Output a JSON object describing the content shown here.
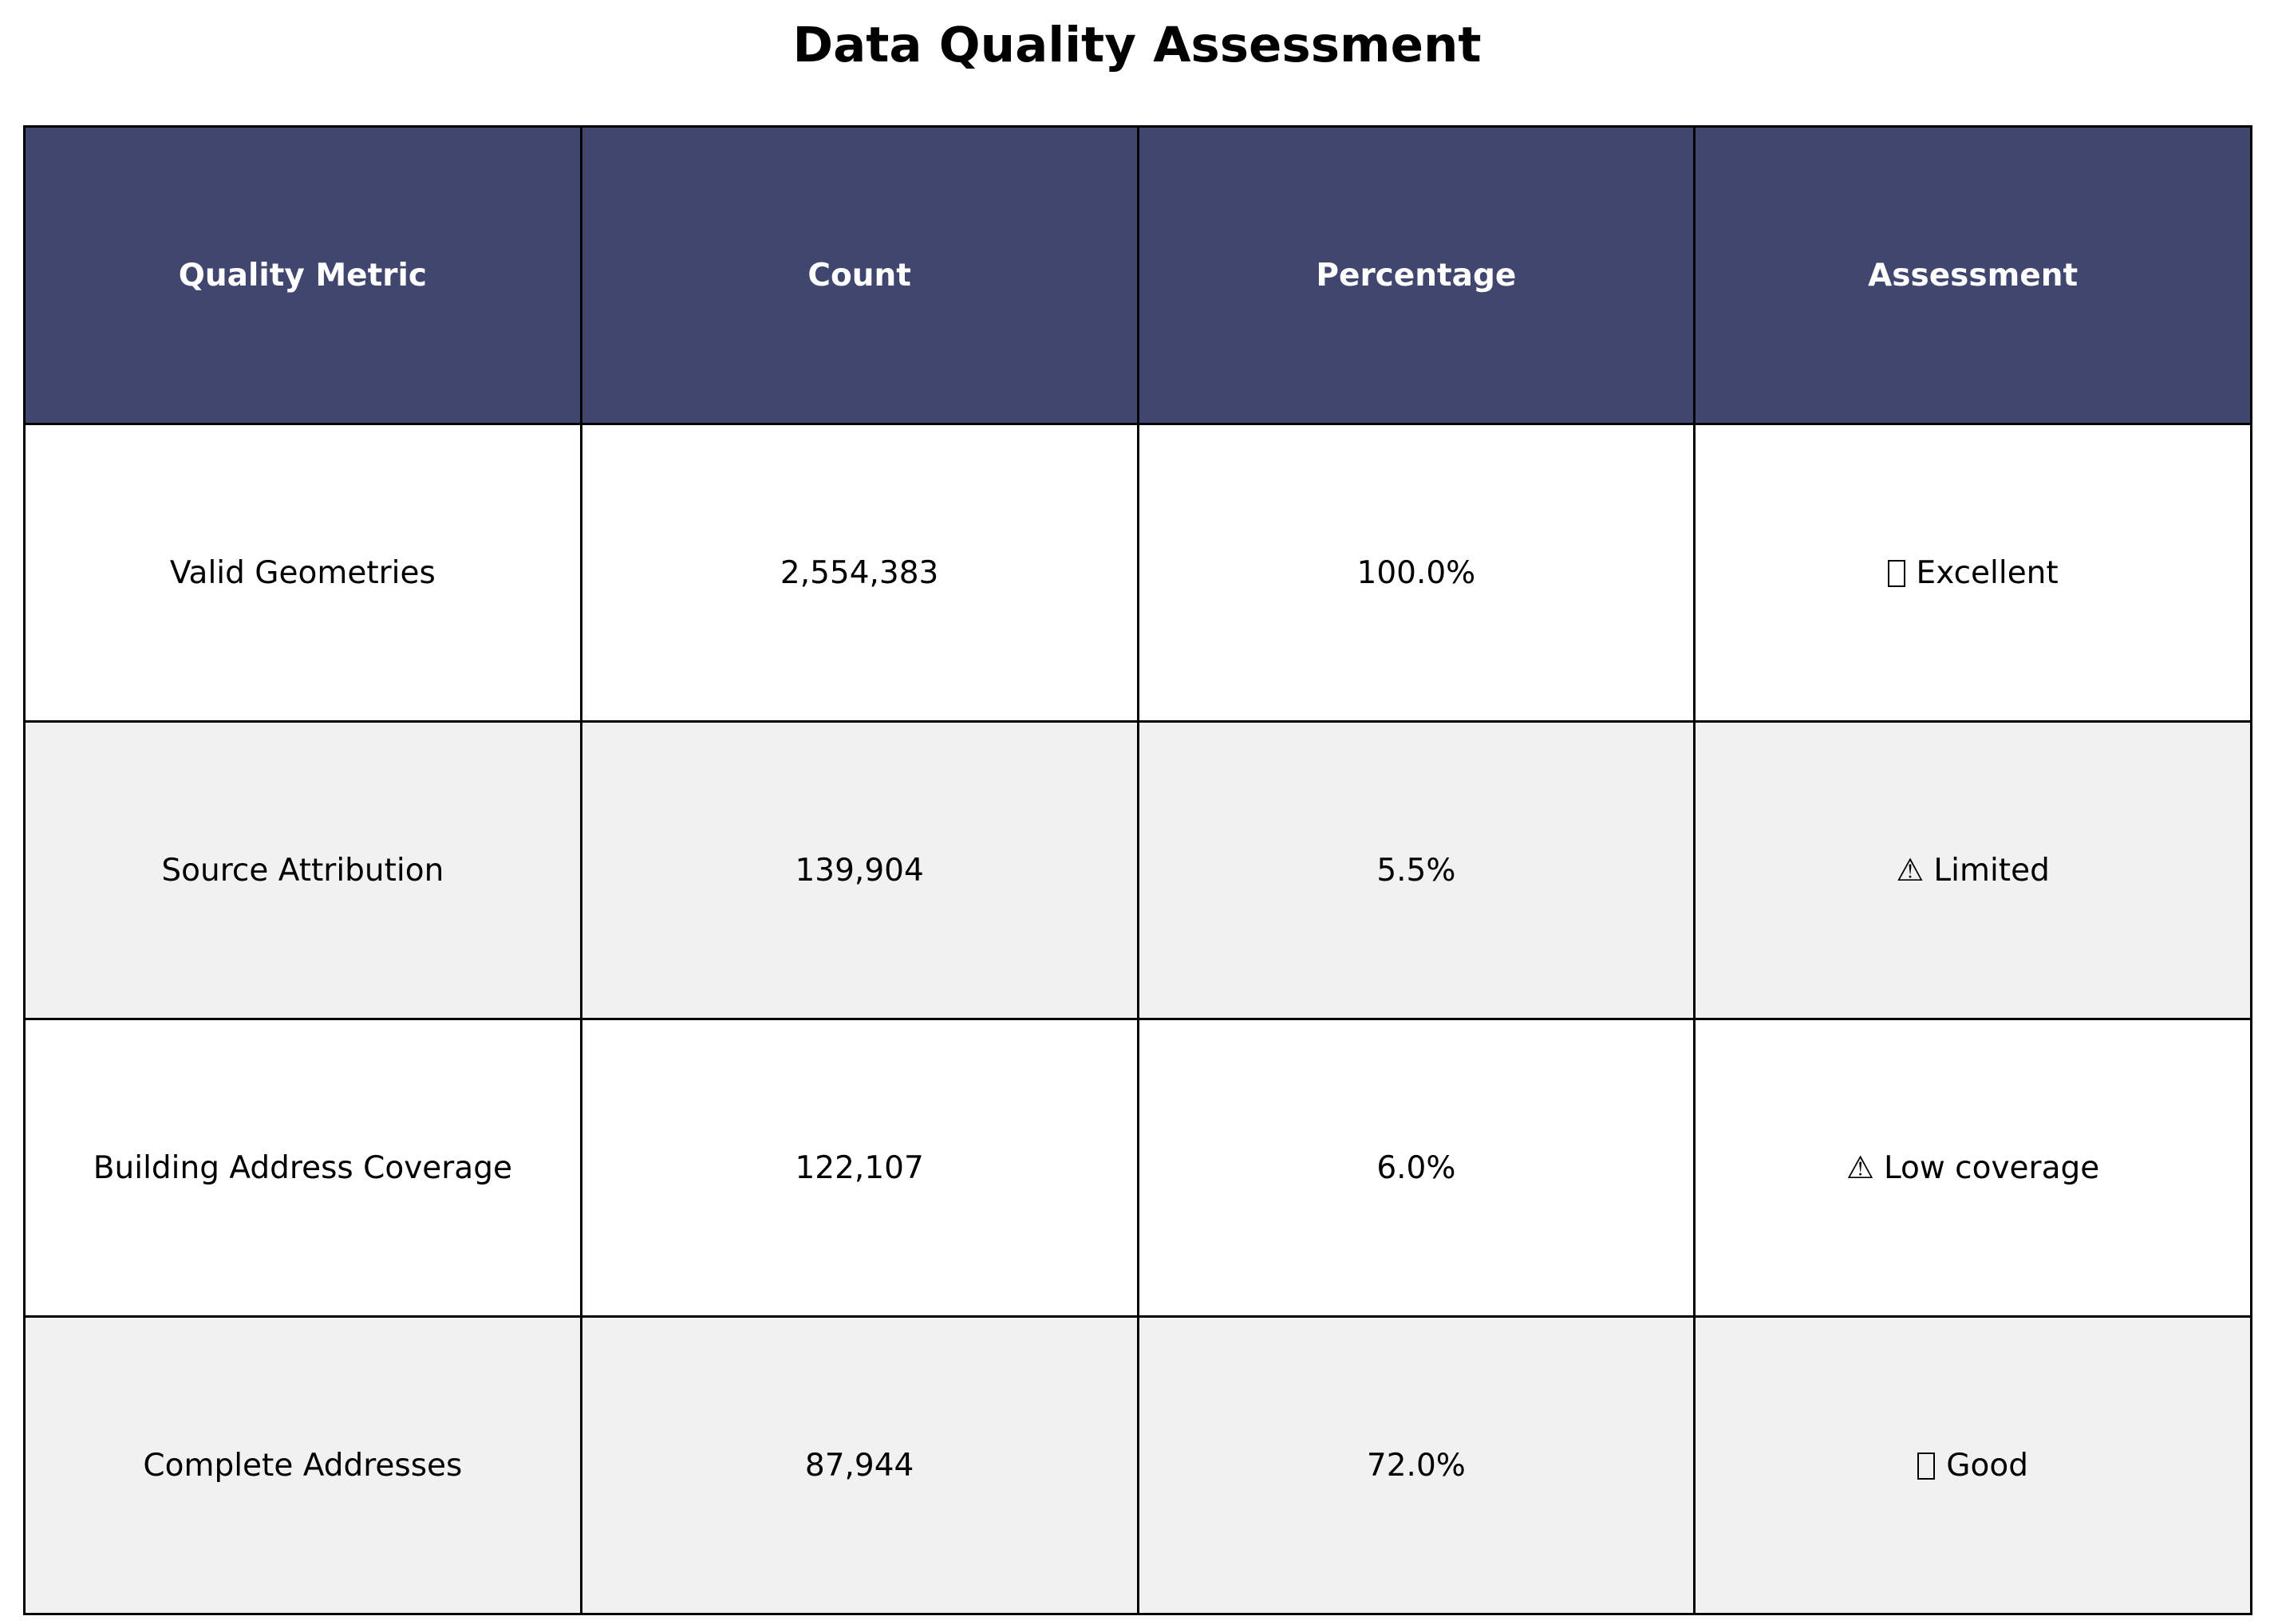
{
  "chart_data": {
    "type": "table",
    "title": "Data Quality Assessment",
    "columns": [
      "Quality Metric",
      "Count",
      "Percentage",
      "Assessment"
    ],
    "rows": [
      {
        "metric": "Valid Geometries",
        "count": "2,554,383",
        "percentage": "100.0%",
        "assessment_icon": "missing-glyph-box",
        "assessment": "Excellent"
      },
      {
        "metric": "Source Attribution",
        "count": "139,904",
        "percentage": "5.5%",
        "assessment_icon": "⚠",
        "assessment": "Limited"
      },
      {
        "metric": "Building Address Coverage",
        "count": "122,107",
        "percentage": "6.0%",
        "assessment_icon": "⚠",
        "assessment": "Low coverage"
      },
      {
        "metric": "Complete Addresses",
        "count": "87,944",
        "percentage": "72.0%",
        "assessment_icon": "missing-glyph-box",
        "assessment": "Good"
      }
    ],
    "colors": {
      "header_bg": "#40466e",
      "header_text": "#ffffff",
      "row_odd_bg": "#ffffff",
      "row_even_bg": "#f1f1f1",
      "border": "#000000"
    }
  }
}
